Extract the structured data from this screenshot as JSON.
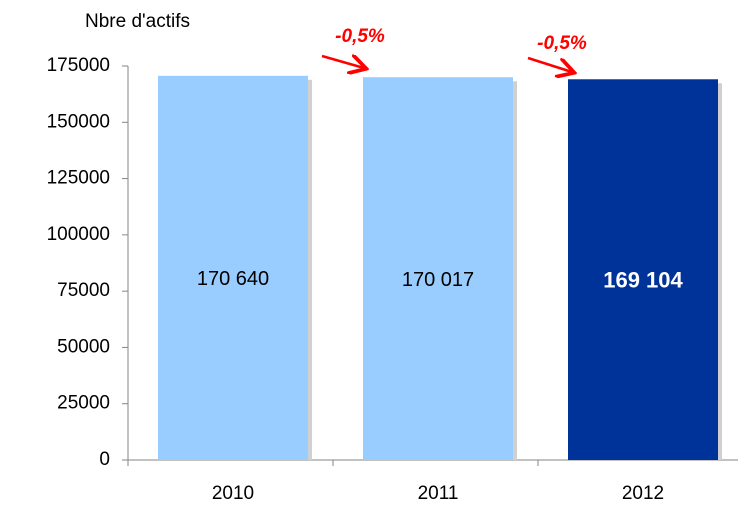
{
  "chart_data": {
    "type": "bar",
    "y_axis_label": "Nbre d'actifs",
    "categories": [
      "2010",
      "2011",
      "2012"
    ],
    "values": [
      170640,
      170017,
      169104
    ],
    "value_labels": [
      "170 640",
      "170 017",
      "169 104"
    ],
    "colors": [
      "#99ccff",
      "#99ccff",
      "#003399"
    ],
    "ylim": [
      0,
      175000
    ],
    "yticks": [
      0,
      25000,
      50000,
      75000,
      100000,
      125000,
      150000,
      175000
    ],
    "annotations": [
      "-0,5%",
      "-0,5%"
    ]
  }
}
